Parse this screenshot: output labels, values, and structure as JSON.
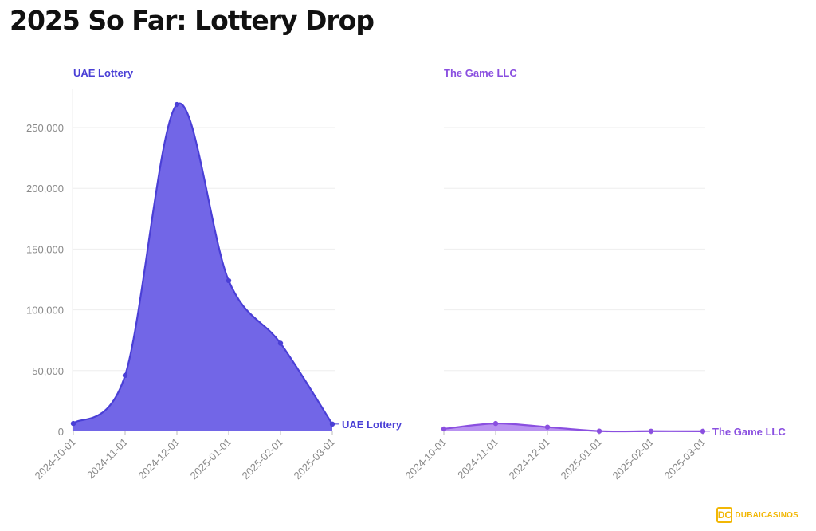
{
  "header": {
    "title": "2025 So Far: Lottery Drop"
  },
  "brand": {
    "mark": "DC",
    "name": "DUBAICASINOS"
  },
  "chart_data": [
    {
      "type": "area",
      "title": "UAE Lottery",
      "x": [
        "2024-10-01",
        "2024-11-01",
        "2024-12-01",
        "2025-01-01",
        "2025-02-01",
        "2025-03-01"
      ],
      "series": [
        {
          "name": "UAE Lottery",
          "values": [
            6500,
            46000,
            269000,
            124000,
            72500,
            6000
          ],
          "color": "#4a3fd6",
          "fill": "#6a5ee6"
        }
      ],
      "ylim": [
        0,
        280000
      ],
      "yticks": [
        0,
        50000,
        100000,
        150000,
        200000,
        250000
      ],
      "ytick_labels": [
        "0",
        "50,000",
        "100,000",
        "150,000",
        "200,000",
        "250,000"
      ],
      "grid": true,
      "legend": "end-of-line label"
    },
    {
      "type": "area",
      "title": "The Game LLC",
      "x": [
        "2024-10-01",
        "2024-11-01",
        "2024-12-01",
        "2025-01-01",
        "2025-02-01",
        "2025-03-01"
      ],
      "series": [
        {
          "name": "The Game LLC",
          "values": [
            2000,
            6500,
            3500,
            200,
            150,
            100
          ],
          "color": "#8a4fe0",
          "fill": "#b58cf0"
        }
      ],
      "ylim": [
        0,
        280000
      ],
      "grid": true,
      "legend": "end-of-line label"
    }
  ]
}
